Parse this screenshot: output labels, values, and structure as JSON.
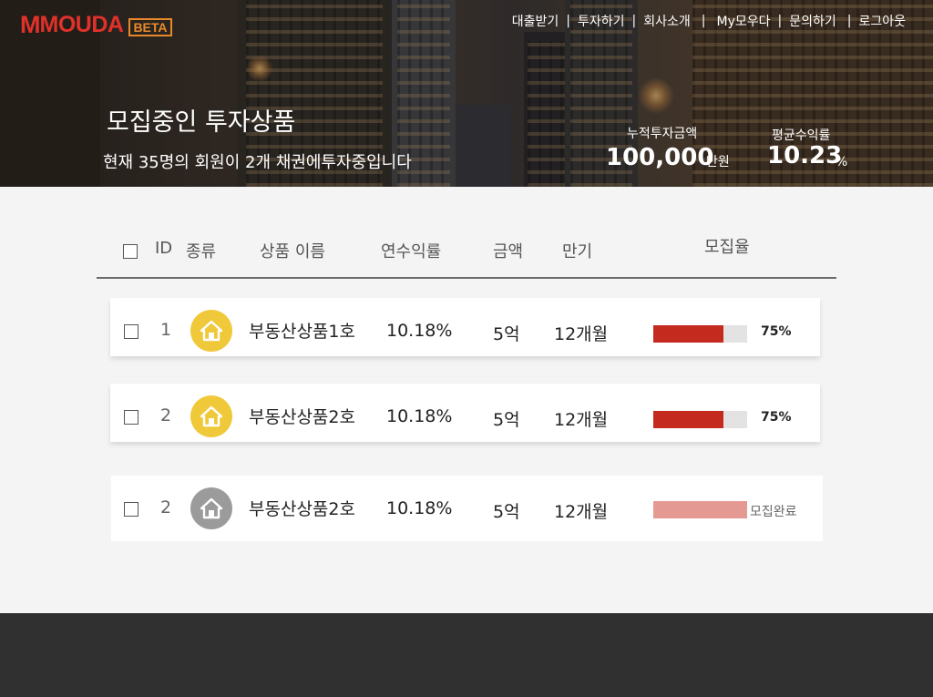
{
  "brand": {
    "logo_mark": "M",
    "logo_text": "MOUDA",
    "badge": "BETA"
  },
  "nav": {
    "items": [
      "대출받기",
      "투자하기",
      "회사소개",
      "My모우다",
      "문의하기",
      "로그아웃"
    ],
    "separator": "|"
  },
  "hero": {
    "title": "모집중인 투자상품",
    "subtitle": "현재 35명의 회원이 2개 채권에투자중입니다",
    "stats": [
      {
        "label": "누적투자금액",
        "value": "100,000",
        "unit": "만원"
      },
      {
        "label": "평균수익률",
        "value": "10.23",
        "unit": "%"
      }
    ]
  },
  "table": {
    "headers": {
      "id": "ID",
      "type": "종류",
      "name": "상품 이름",
      "rate": "연수익률",
      "amount": "금액",
      "term": "만기",
      "progress": "모집율"
    },
    "rows": [
      {
        "id": "1",
        "name": "부동산상품1호",
        "rate": "10.18%",
        "amount": "5억",
        "term": "12개월",
        "progress": 0.75,
        "progress_label": "75%",
        "status": "active",
        "icon": "house-icon",
        "icon_color": "#f0c93b"
      },
      {
        "id": "2",
        "name": "부동산상품2호",
        "rate": "10.18%",
        "amount": "5억",
        "term": "12개월",
        "progress": 0.75,
        "progress_label": "75%",
        "status": "active",
        "icon": "house-icon",
        "icon_color": "#f0c93b"
      },
      {
        "id": "2",
        "name": "부동산상품2호",
        "rate": "10.18%",
        "amount": "5억",
        "term": "12개월",
        "progress": 1.0,
        "progress_label": "모집완료",
        "status": "complete",
        "icon": "house-icon",
        "icon_color": "#9b9b9b"
      }
    ]
  },
  "colors": {
    "brand": "#e0312a",
    "badge": "#e88a2c",
    "progress": "#c42a1e",
    "progress_complete": "#e49a92",
    "footer": "#303030"
  }
}
